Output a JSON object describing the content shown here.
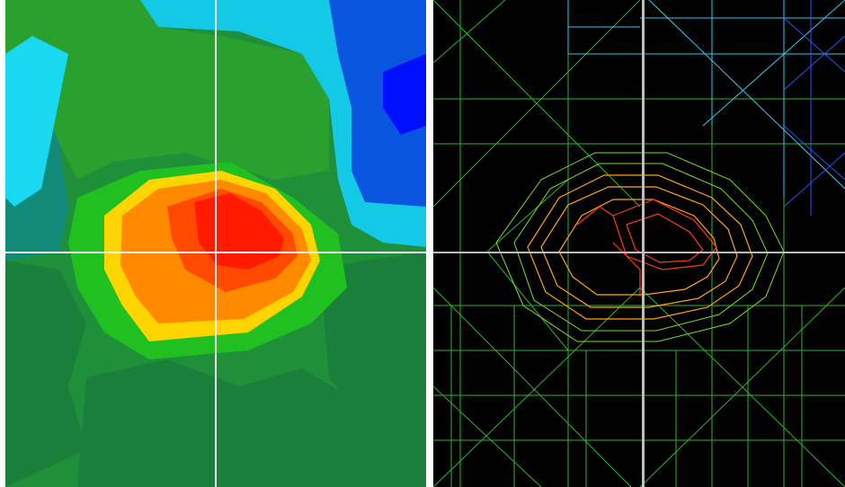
{
  "views": {
    "left": {
      "name": "filled-contour-view",
      "colors": {
        "background": "#1f8f3a",
        "deep_green": "#1a7f3a",
        "green": "#2aa12e",
        "bright_green": "#20c020",
        "teal": "#118a7a",
        "cyan": "#13c9e6",
        "light_cyan": "#19d9f0",
        "blue": "#0a55e0",
        "deep_blue": "#0010ff",
        "yellow": "#ffd400",
        "orange": "#ff8a00",
        "red_orange": "#ff4a00",
        "red": "#ff1a00"
      },
      "crosshair_color": "#f2f2f2"
    },
    "right": {
      "name": "wireframe-contour-view",
      "colors": {
        "background": "#000000",
        "line_green": "#2fb52f",
        "line_lime": "#7adf24",
        "line_cyan": "#39c9ea",
        "line_blue": "#2a56ff",
        "line_orange": "#ffa21a",
        "line_red": "#ff3a12"
      },
      "crosshair_color": "#bdbdbd"
    }
  }
}
